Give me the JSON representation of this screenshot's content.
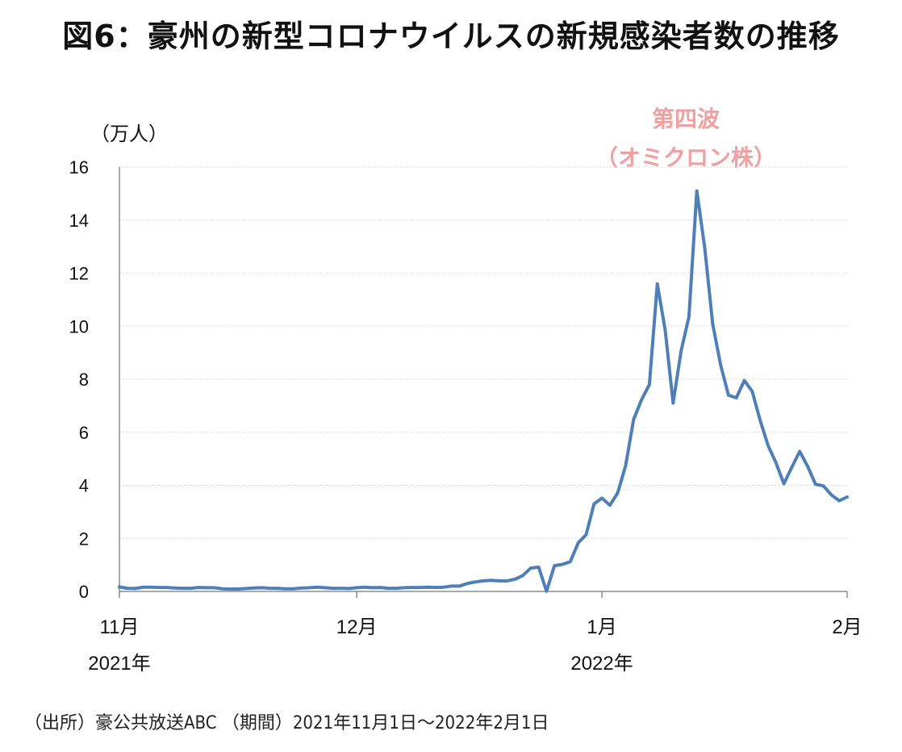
{
  "title": "図6：豪州の新型コロナウイルスの新規感染者数の推移",
  "source": "（出所）豪公共放送ABC （期間）2021年11月1日〜2022年2月1日",
  "colors": {
    "line": "#4e7fb8",
    "annotation": "#f0a0a0",
    "grid": "#d8d8d8"
  },
  "chart_data": {
    "type": "line",
    "title": "図6：豪州の新型コロナウイルスの新規感染者数の推移",
    "ylabel": "（万人）",
    "ylim": [
      0,
      16
    ],
    "yticks": [
      "0",
      "2",
      "4",
      "6",
      "8",
      "10",
      "12",
      "14",
      "16"
    ],
    "xlim": [
      "2021-11-01",
      "2022-02-01"
    ],
    "xticks": [
      {
        "date": "2021-11-01",
        "label": "11月",
        "year": "2021年"
      },
      {
        "date": "2021-12-01",
        "label": "12月",
        "year": ""
      },
      {
        "date": "2022-01-01",
        "label": "1月",
        "year": "2022年"
      },
      {
        "date": "2022-02-01",
        "label": "2月",
        "year": ""
      }
    ],
    "annotation": {
      "line1": "第四波",
      "line2": "（オミクロン株）"
    },
    "grid": true,
    "series": [
      {
        "x": [
          "2021-11-01",
          "2021-11-02",
          "2021-11-03",
          "2021-11-04",
          "2021-11-05",
          "2021-11-06",
          "2021-11-07",
          "2021-11-08",
          "2021-11-09",
          "2021-11-10",
          "2021-11-11",
          "2021-11-12",
          "2021-11-13",
          "2021-11-14",
          "2021-11-15",
          "2021-11-16",
          "2021-11-17",
          "2021-11-18",
          "2021-11-19",
          "2021-11-20",
          "2021-11-21",
          "2021-11-22",
          "2021-11-23",
          "2021-11-24",
          "2021-11-25",
          "2021-11-26",
          "2021-11-27",
          "2021-11-28",
          "2021-11-29",
          "2021-11-30",
          "2021-12-01",
          "2021-12-02",
          "2021-12-03",
          "2021-12-04",
          "2021-12-05",
          "2021-12-06",
          "2021-12-07",
          "2021-12-08",
          "2021-12-09",
          "2021-12-10",
          "2021-12-11",
          "2021-12-12",
          "2021-12-13",
          "2021-12-14",
          "2021-12-15",
          "2021-12-16",
          "2021-12-17",
          "2021-12-18",
          "2021-12-19",
          "2021-12-20",
          "2021-12-21",
          "2021-12-22",
          "2021-12-23",
          "2021-12-24",
          "2021-12-25",
          "2021-12-26",
          "2021-12-27",
          "2021-12-28",
          "2021-12-29",
          "2021-12-30",
          "2021-12-31",
          "2022-01-01",
          "2022-01-02",
          "2022-01-03",
          "2022-01-04",
          "2022-01-05",
          "2022-01-06",
          "2022-01-07",
          "2022-01-08",
          "2022-01-09",
          "2022-01-10",
          "2022-01-11",
          "2022-01-12",
          "2022-01-13",
          "2022-01-14",
          "2022-01-15",
          "2022-01-16",
          "2022-01-17",
          "2022-01-18",
          "2022-01-19",
          "2022-01-20",
          "2022-01-21",
          "2022-01-22",
          "2022-01-23",
          "2022-01-24",
          "2022-01-25",
          "2022-01-26",
          "2022-01-27",
          "2022-01-28",
          "2022-01-29",
          "2022-01-30",
          "2022-01-31",
          "2022-02-01"
        ],
        "values": [
          0.17,
          0.12,
          0.11,
          0.16,
          0.16,
          0.15,
          0.15,
          0.13,
          0.12,
          0.12,
          0.15,
          0.14,
          0.14,
          0.1,
          0.09,
          0.09,
          0.11,
          0.13,
          0.14,
          0.12,
          0.12,
          0.1,
          0.1,
          0.13,
          0.14,
          0.16,
          0.14,
          0.12,
          0.12,
          0.11,
          0.14,
          0.16,
          0.14,
          0.15,
          0.12,
          0.12,
          0.14,
          0.15,
          0.15,
          0.16,
          0.15,
          0.16,
          0.2,
          0.2,
          0.3,
          0.36,
          0.4,
          0.42,
          0.4,
          0.4,
          0.46,
          0.6,
          0.88,
          0.92,
          0.01,
          0.97,
          1.02,
          1.12,
          1.83,
          2.14,
          3.3,
          3.52,
          3.25,
          3.72,
          4.75,
          6.48,
          7.22,
          7.8,
          11.6,
          9.85,
          7.1,
          9.05,
          10.35,
          15.1,
          12.95,
          10.1,
          8.55,
          7.4,
          7.3,
          7.95,
          7.55,
          6.45,
          5.5,
          4.85,
          4.06,
          4.68,
          5.28,
          4.72,
          4.04,
          3.98,
          3.64,
          3.42,
          3.56
        ]
      }
    ]
  }
}
